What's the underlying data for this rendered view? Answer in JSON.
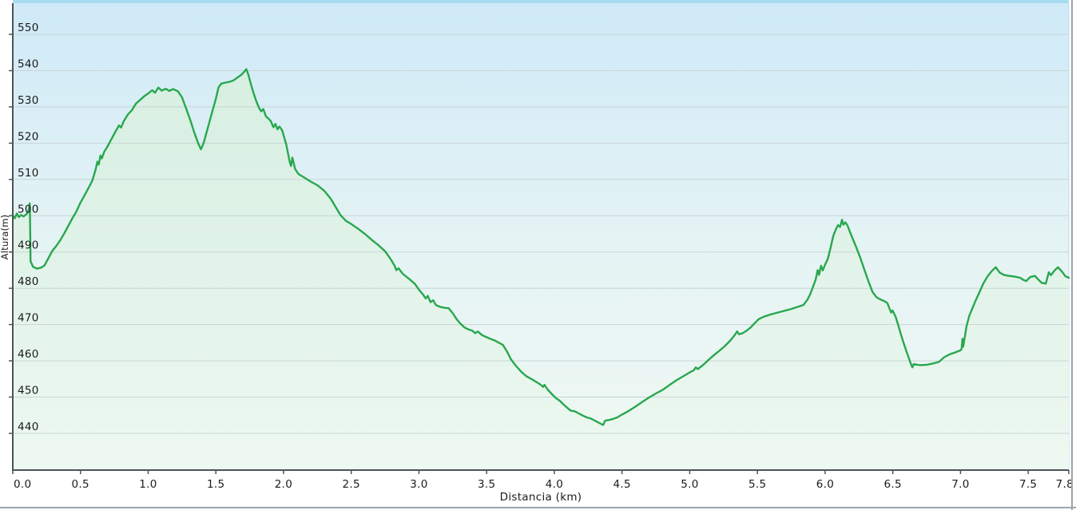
{
  "panel": {
    "description": "Elevation profile panel of a GPS track"
  },
  "colors": {
    "line": "#28a74e",
    "area_top": "#d5eee0",
    "area_bottom": "#edf8f1",
    "bg_top": "#cfeaf8",
    "bg_mid": "#e4f3f4",
    "bg_bottom": "#f0f9f3",
    "grid": "#c8d4d5",
    "axis": "#4d5357",
    "text": "#1b1b1b",
    "plot_top_border": "#a9dbf0",
    "plot_right_edge": "#b9d8e8",
    "panel_right_line": "#9ba3ab",
    "panel_bottom_line": "#9ba6ae"
  },
  "chart_data": {
    "type": "area",
    "title": "",
    "xlabel": "Distancia (km)",
    "ylabel": "Altura(m)",
    "xlim": [
      0,
      7.8
    ],
    "ylim": [
      430,
      557
    ],
    "grid": true,
    "legend": false,
    "x_ticks": {
      "values": [
        0,
        0.5,
        1.0,
        1.5,
        2.0,
        2.5,
        3.0,
        3.5,
        4.0,
        4.5,
        5.0,
        5.5,
        6.0,
        6.5,
        7.0,
        7.5,
        7.8
      ],
      "labels": [
        "0.0",
        "0.5",
        "1.0",
        "1.5",
        "2.0",
        "2.5",
        "3.0",
        "3.5",
        "4.0",
        "4.5",
        "5.0",
        "5.5",
        "6.0",
        "6.5",
        "7.0",
        "7.5",
        "7.8"
      ]
    },
    "y_ticks": {
      "values": [
        550,
        540,
        530,
        520,
        510,
        500,
        490,
        480,
        470,
        460,
        450,
        440
      ],
      "labels": [
        "550",
        "540",
        "530",
        "520",
        "510",
        "500",
        "490",
        "480",
        "470",
        "460",
        "450",
        "440"
      ]
    },
    "series": [
      {
        "name": "Altura",
        "units": {
          "x": "km",
          "y": "m"
        },
        "points": [
          [
            0,
            500
          ],
          [
            0.015,
            499.3
          ],
          [
            0.03,
            500.6
          ],
          [
            0.045,
            499.6
          ],
          [
            0.06,
            500.2
          ],
          [
            0.08,
            499.8
          ],
          [
            0.1,
            500.4
          ],
          [
            0.115,
            501.2
          ],
          [
            0.125,
            503.4
          ],
          [
            0.128,
            498
          ],
          [
            0.131,
            487.5
          ],
          [
            0.15,
            485.9
          ],
          [
            0.18,
            485.4
          ],
          [
            0.21,
            485.7
          ],
          [
            0.235,
            486.3
          ],
          [
            0.26,
            488.1
          ],
          [
            0.29,
            490.2
          ],
          [
            0.32,
            491.6
          ],
          [
            0.35,
            493.2
          ],
          [
            0.38,
            495.1
          ],
          [
            0.41,
            497.2
          ],
          [
            0.44,
            499.3
          ],
          [
            0.47,
            501.2
          ],
          [
            0.5,
            503.6
          ],
          [
            0.53,
            505.6
          ],
          [
            0.56,
            507.7
          ],
          [
            0.585,
            509.5
          ],
          [
            0.6,
            511.2
          ],
          [
            0.615,
            513.2
          ],
          [
            0.625,
            514.9
          ],
          [
            0.635,
            514.1
          ],
          [
            0.648,
            516.6
          ],
          [
            0.658,
            515.8
          ],
          [
            0.675,
            517.6
          ],
          [
            0.7,
            519.1
          ],
          [
            0.73,
            521.2
          ],
          [
            0.76,
            523.3
          ],
          [
            0.785,
            524.9
          ],
          [
            0.8,
            524.3
          ],
          [
            0.82,
            526.1
          ],
          [
            0.85,
            527.9
          ],
          [
            0.88,
            529.1
          ],
          [
            0.91,
            530.9
          ],
          [
            0.94,
            531.9
          ],
          [
            0.97,
            532.9
          ],
          [
            1.0,
            533.7
          ],
          [
            1.03,
            534.6
          ],
          [
            1.05,
            533.9
          ],
          [
            1.075,
            535.3
          ],
          [
            1.1,
            534.5
          ],
          [
            1.13,
            535
          ],
          [
            1.155,
            534.4
          ],
          [
            1.185,
            534.9
          ],
          [
            1.22,
            534.3
          ],
          [
            1.25,
            532.6
          ],
          [
            1.28,
            529.6
          ],
          [
            1.31,
            526.5
          ],
          [
            1.34,
            523
          ],
          [
            1.37,
            519.9
          ],
          [
            1.39,
            518.3
          ],
          [
            1.41,
            520.1
          ],
          [
            1.44,
            524.2
          ],
          [
            1.47,
            528.2
          ],
          [
            1.5,
            532.2
          ],
          [
            1.52,
            535.4
          ],
          [
            1.54,
            536.4
          ],
          [
            1.57,
            536.7
          ],
          [
            1.6,
            536.9
          ],
          [
            1.63,
            537.3
          ],
          [
            1.66,
            538.1
          ],
          [
            1.69,
            538.9
          ],
          [
            1.71,
            539.7
          ],
          [
            1.725,
            540.4
          ],
          [
            1.74,
            538.9
          ],
          [
            1.76,
            536.1
          ],
          [
            1.78,
            533.6
          ],
          [
            1.8,
            531.4
          ],
          [
            1.82,
            529.6
          ],
          [
            1.835,
            528.8
          ],
          [
            1.85,
            529.4
          ],
          [
            1.87,
            527.4
          ],
          [
            1.89,
            526.7
          ],
          [
            1.905,
            526.1
          ],
          [
            1.925,
            524.4
          ],
          [
            1.94,
            525.3
          ],
          [
            1.955,
            523.8
          ],
          [
            1.97,
            524.6
          ],
          [
            1.99,
            523.5
          ],
          [
            2.02,
            519.6
          ],
          [
            2.045,
            514.9
          ],
          [
            2.055,
            513.7
          ],
          [
            2.065,
            516
          ],
          [
            2.085,
            512.9
          ],
          [
            2.11,
            511.5
          ],
          [
            2.15,
            510.6
          ],
          [
            2.2,
            509.4
          ],
          [
            2.25,
            508.4
          ],
          [
            2.3,
            506.9
          ],
          [
            2.35,
            504.6
          ],
          [
            2.385,
            502.4
          ],
          [
            2.42,
            500.2
          ],
          [
            2.46,
            498.6
          ],
          [
            2.5,
            497.7
          ],
          [
            2.55,
            496.4
          ],
          [
            2.6,
            495
          ],
          [
            2.65,
            493.4
          ],
          [
            2.7,
            491.9
          ],
          [
            2.75,
            490.2
          ],
          [
            2.79,
            488.1
          ],
          [
            2.82,
            486.2
          ],
          [
            2.833,
            485
          ],
          [
            2.85,
            485.5
          ],
          [
            2.88,
            484
          ],
          [
            2.93,
            482.5
          ],
          [
            2.97,
            481.2
          ],
          [
            3.0,
            479.6
          ],
          [
            3.03,
            478.3
          ],
          [
            3.05,
            477.2
          ],
          [
            3.065,
            477.9
          ],
          [
            3.085,
            476.2
          ],
          [
            3.105,
            476.7
          ],
          [
            3.125,
            475.4
          ],
          [
            3.155,
            474.9
          ],
          [
            3.19,
            474.6
          ],
          [
            3.22,
            474.5
          ],
          [
            3.25,
            473.1
          ],
          [
            3.28,
            471.4
          ],
          [
            3.31,
            470.1
          ],
          [
            3.34,
            469.1
          ],
          [
            3.37,
            468.6
          ],
          [
            3.395,
            468.3
          ],
          [
            3.415,
            467.6
          ],
          [
            3.435,
            468.1
          ],
          [
            3.465,
            467.1
          ],
          [
            3.5,
            466.5
          ],
          [
            3.53,
            466
          ],
          [
            3.56,
            465.6
          ],
          [
            3.59,
            465
          ],
          [
            3.62,
            464.4
          ],
          [
            3.65,
            462.6
          ],
          [
            3.68,
            460.4
          ],
          [
            3.715,
            458.7
          ],
          [
            3.755,
            457
          ],
          [
            3.795,
            455.7
          ],
          [
            3.835,
            454.9
          ],
          [
            3.87,
            454.1
          ],
          [
            3.9,
            453.4
          ],
          [
            3.917,
            452.8
          ],
          [
            3.927,
            453.4
          ],
          [
            3.95,
            452.1
          ],
          [
            3.98,
            450.9
          ],
          [
            4.01,
            449.8
          ],
          [
            4.04,
            449
          ],
          [
            4.07,
            447.9
          ],
          [
            4.1,
            446.9
          ],
          [
            4.12,
            446.3
          ],
          [
            4.15,
            446.1
          ],
          [
            4.18,
            445.5
          ],
          [
            4.21,
            444.9
          ],
          [
            4.24,
            444.4
          ],
          [
            4.27,
            444.1
          ],
          [
            4.3,
            443.5
          ],
          [
            4.33,
            442.9
          ],
          [
            4.36,
            442.3
          ],
          [
            4.375,
            443.5
          ],
          [
            4.405,
            443.7
          ],
          [
            4.435,
            444
          ],
          [
            4.465,
            444.4
          ],
          [
            4.5,
            445.2
          ],
          [
            4.55,
            446.2
          ],
          [
            4.6,
            447.4
          ],
          [
            4.65,
            448.7
          ],
          [
            4.7,
            449.9
          ],
          [
            4.75,
            451
          ],
          [
            4.8,
            452
          ],
          [
            4.85,
            453.3
          ],
          [
            4.9,
            454.6
          ],
          [
            4.95,
            455.7
          ],
          [
            5.0,
            456.8
          ],
          [
            5.03,
            457.4
          ],
          [
            5.045,
            458.2
          ],
          [
            5.06,
            457.7
          ],
          [
            5.1,
            458.9
          ],
          [
            5.14,
            460.3
          ],
          [
            5.18,
            461.6
          ],
          [
            5.22,
            462.8
          ],
          [
            5.26,
            464.1
          ],
          [
            5.3,
            465.6
          ],
          [
            5.33,
            467
          ],
          [
            5.35,
            468.1
          ],
          [
            5.365,
            467.3
          ],
          [
            5.39,
            467.6
          ],
          [
            5.42,
            468.3
          ],
          [
            5.45,
            469.2
          ],
          [
            5.48,
            470.4
          ],
          [
            5.51,
            471.5
          ],
          [
            5.55,
            472.2
          ],
          [
            5.6,
            472.8
          ],
          [
            5.65,
            473.3
          ],
          [
            5.7,
            473.8
          ],
          [
            5.75,
            474.3
          ],
          [
            5.8,
            474.9
          ],
          [
            5.84,
            475.4
          ],
          [
            5.87,
            476.9
          ],
          [
            5.89,
            478.4
          ],
          [
            5.91,
            480.4
          ],
          [
            5.93,
            482.4
          ],
          [
            5.945,
            485
          ],
          [
            5.955,
            483.7
          ],
          [
            5.97,
            486.2
          ],
          [
            5.982,
            484.9
          ],
          [
            6.0,
            486.5
          ],
          [
            6.02,
            488.1
          ],
          [
            6.04,
            491.1
          ],
          [
            6.06,
            494.4
          ],
          [
            6.08,
            496.3
          ],
          [
            6.095,
            497.4
          ],
          [
            6.11,
            496.9
          ],
          [
            6.125,
            498.9
          ],
          [
            6.135,
            497.5
          ],
          [
            6.15,
            498.2
          ],
          [
            6.165,
            497.3
          ],
          [
            6.18,
            495.9
          ],
          [
            6.2,
            494
          ],
          [
            6.23,
            491.3
          ],
          [
            6.26,
            488.4
          ],
          [
            6.29,
            485.1
          ],
          [
            6.32,
            481.9
          ],
          [
            6.35,
            479
          ],
          [
            6.38,
            477.5
          ],
          [
            6.41,
            476.9
          ],
          [
            6.44,
            476.4
          ],
          [
            6.46,
            475.9
          ],
          [
            6.478,
            474.2
          ],
          [
            6.488,
            473.3
          ],
          [
            6.498,
            473.9
          ],
          [
            6.52,
            472.2
          ],
          [
            6.54,
            469.9
          ],
          [
            6.56,
            467.3
          ],
          [
            6.58,
            464.9
          ],
          [
            6.6,
            462.7
          ],
          [
            6.62,
            460.6
          ],
          [
            6.635,
            459
          ],
          [
            6.645,
            458.2
          ],
          [
            6.655,
            459.1
          ],
          [
            6.7,
            458.8
          ],
          [
            6.75,
            458.9
          ],
          [
            6.8,
            459.3
          ],
          [
            6.84,
            459.7
          ],
          [
            6.88,
            461
          ],
          [
            6.92,
            461.8
          ],
          [
            6.96,
            462.3
          ],
          [
            7.0,
            462.9
          ],
          [
            7.008,
            463.3
          ],
          [
            7.014,
            466.1
          ],
          [
            7.02,
            463.9
          ],
          [
            7.045,
            469.6
          ],
          [
            7.065,
            472.4
          ],
          [
            7.085,
            474.2
          ],
          [
            7.11,
            476.5
          ],
          [
            7.14,
            478.9
          ],
          [
            7.17,
            481.4
          ],
          [
            7.2,
            483.3
          ],
          [
            7.23,
            484.7
          ],
          [
            7.26,
            485.8
          ],
          [
            7.29,
            484.3
          ],
          [
            7.32,
            483.7
          ],
          [
            7.36,
            483.4
          ],
          [
            7.4,
            483.2
          ],
          [
            7.44,
            482.9
          ],
          [
            7.465,
            482.3
          ],
          [
            7.485,
            482
          ],
          [
            7.515,
            483.1
          ],
          [
            7.55,
            483.4
          ],
          [
            7.575,
            482.4
          ],
          [
            7.6,
            481.5
          ],
          [
            7.63,
            481.3
          ],
          [
            7.652,
            484.4
          ],
          [
            7.668,
            483.6
          ],
          [
            7.695,
            484.9
          ],
          [
            7.72,
            485.8
          ],
          [
            7.75,
            484.6
          ],
          [
            7.775,
            483.3
          ],
          [
            7.8,
            482.9
          ]
        ]
      }
    ]
  }
}
